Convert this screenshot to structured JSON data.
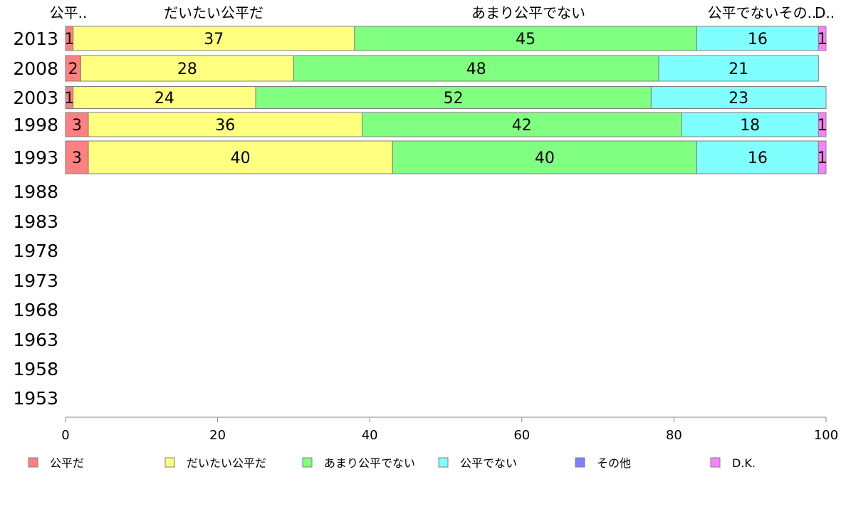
{
  "chart_data": {
    "type": "bar",
    "orientation": "horizontal",
    "stacked": true,
    "xlim": [
      0,
      100
    ],
    "x_ticks": [
      0,
      20,
      40,
      60,
      80,
      100
    ],
    "categories": [
      "2013",
      "2008",
      "2003",
      "1998",
      "1993",
      "1988",
      "1983",
      "1978",
      "1973",
      "1968",
      "1963",
      "1958",
      "1953"
    ],
    "top_labels": [
      "公平..",
      "だいたい公平だ",
      "あまり公平でない",
      "公平でないその..",
      "D.."
    ],
    "series": [
      {
        "name": "公平だ",
        "color": "#ff8080",
        "values": [
          1,
          2,
          1,
          3,
          3,
          null,
          null,
          null,
          null,
          null,
          null,
          null,
          null
        ]
      },
      {
        "name": "だいたい公平だ",
        "color": "#ffff80",
        "values": [
          37,
          28,
          24,
          36,
          40,
          null,
          null,
          null,
          null,
          null,
          null,
          null,
          null
        ]
      },
      {
        "name": "あまり公平でない",
        "color": "#80ff80",
        "values": [
          45,
          48,
          52,
          42,
          40,
          null,
          null,
          null,
          null,
          null,
          null,
          null,
          null
        ]
      },
      {
        "name": "公平でない",
        "color": "#80ffff",
        "values": [
          16,
          21,
          23,
          18,
          16,
          null,
          null,
          null,
          null,
          null,
          null,
          null,
          null
        ]
      },
      {
        "name": "その他",
        "color": "#8080ff",
        "values": [
          0,
          0,
          0,
          0,
          0,
          null,
          null,
          null,
          null,
          null,
          null,
          null,
          null
        ]
      },
      {
        "name": "D.K.",
        "color": "#ff80ff",
        "values": [
          1,
          0,
          0,
          1,
          1,
          null,
          null,
          null,
          null,
          null,
          null,
          null,
          null
        ]
      }
    ],
    "legend_position": "bottom",
    "grid": false
  }
}
